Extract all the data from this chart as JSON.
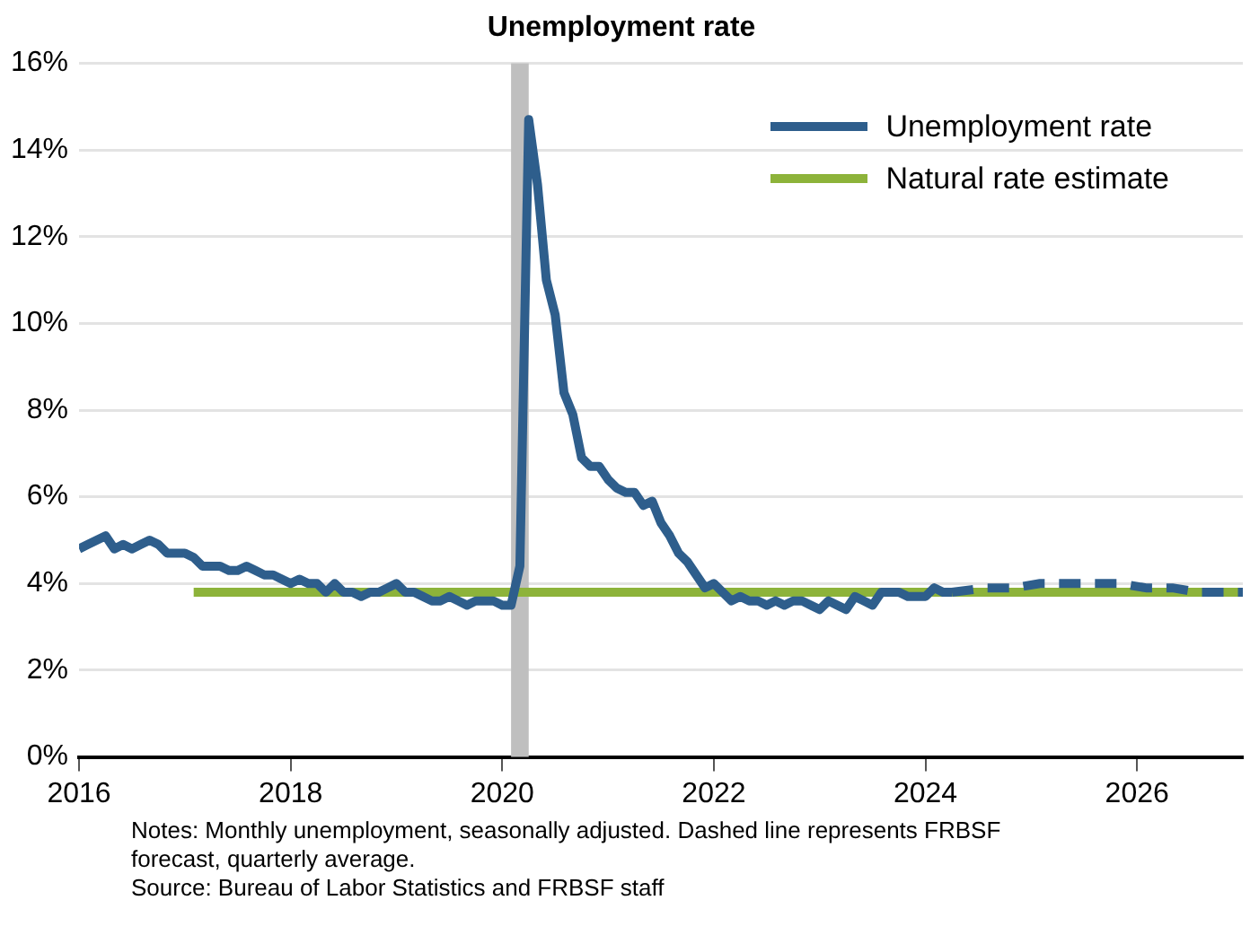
{
  "chart_data": {
    "type": "line",
    "title": "Unemployment rate",
    "xlim": [
      "2016",
      "2027"
    ],
    "xticks": [
      {
        "value": "2016",
        "label": "2016"
      },
      {
        "value": "2018",
        "label": "2018"
      },
      {
        "value": "2020",
        "label": "2020"
      },
      {
        "value": "2022",
        "label": "2022"
      },
      {
        "value": "2024",
        "label": "2024"
      },
      {
        "value": "2026",
        "label": "2026"
      }
    ],
    "ylim": [
      0,
      16
    ],
    "yticks": [
      {
        "value": 0,
        "label": "0%"
      },
      {
        "value": 2,
        "label": "2%"
      },
      {
        "value": 4,
        "label": "4%"
      },
      {
        "value": 6,
        "label": "6%"
      },
      {
        "value": 8,
        "label": "8%"
      },
      {
        "value": 10,
        "label": "10%"
      },
      {
        "value": 12,
        "label": "12%"
      },
      {
        "value": 14,
        "label": "14%"
      },
      {
        "value": 16,
        "label": "16%"
      }
    ],
    "grid": "y",
    "legend": "top right",
    "marker": "none",
    "bands": [
      {
        "axis": "x",
        "from": "2020-02",
        "to": "2020-04",
        "color": "#bfbfbf"
      }
    ],
    "series": [
      {
        "name": "Unemployment rate",
        "color": "#2e5e8c",
        "line_style": "solid",
        "x": [
          "2016-01",
          "2016-02",
          "2016-03",
          "2016-04",
          "2016-05",
          "2016-06",
          "2016-07",
          "2016-08",
          "2016-09",
          "2016-10",
          "2016-11",
          "2016-12",
          "2017-01",
          "2017-02",
          "2017-03",
          "2017-04",
          "2017-05",
          "2017-06",
          "2017-07",
          "2017-08",
          "2017-09",
          "2017-10",
          "2017-11",
          "2017-12",
          "2018-01",
          "2018-02",
          "2018-03",
          "2018-04",
          "2018-05",
          "2018-06",
          "2018-07",
          "2018-08",
          "2018-09",
          "2018-10",
          "2018-11",
          "2018-12",
          "2019-01",
          "2019-02",
          "2019-03",
          "2019-04",
          "2019-05",
          "2019-06",
          "2019-07",
          "2019-08",
          "2019-09",
          "2019-10",
          "2019-11",
          "2019-12",
          "2020-01",
          "2020-02",
          "2020-03",
          "2020-04",
          "2020-05",
          "2020-06",
          "2020-07",
          "2020-08",
          "2020-09",
          "2020-10",
          "2020-11",
          "2020-12",
          "2021-01",
          "2021-02",
          "2021-03",
          "2021-04",
          "2021-05",
          "2021-06",
          "2021-07",
          "2021-08",
          "2021-09",
          "2021-10",
          "2021-11",
          "2021-12",
          "2022-01",
          "2022-02",
          "2022-03",
          "2022-04",
          "2022-05",
          "2022-06",
          "2022-07",
          "2022-08",
          "2022-09",
          "2022-10",
          "2022-11",
          "2022-12",
          "2023-01",
          "2023-02",
          "2023-03",
          "2023-04",
          "2023-05",
          "2023-06",
          "2023-07",
          "2023-08",
          "2023-09",
          "2023-10",
          "2023-11",
          "2023-12",
          "2024-01",
          "2024-02",
          "2024-03",
          "2024-04"
        ],
        "values": [
          4.8,
          4.9,
          5.0,
          5.1,
          4.8,
          4.9,
          4.8,
          4.9,
          5.0,
          4.9,
          4.7,
          4.7,
          4.7,
          4.6,
          4.4,
          4.4,
          4.4,
          4.3,
          4.3,
          4.4,
          4.3,
          4.2,
          4.2,
          4.1,
          4.0,
          4.1,
          4.0,
          4.0,
          3.8,
          4.0,
          3.8,
          3.8,
          3.7,
          3.8,
          3.8,
          3.9,
          4.0,
          3.8,
          3.8,
          3.7,
          3.6,
          3.6,
          3.7,
          3.6,
          3.5,
          3.6,
          3.6,
          3.6,
          3.5,
          3.5,
          4.4,
          14.7,
          13.2,
          11.0,
          10.2,
          8.4,
          7.9,
          6.9,
          6.7,
          6.7,
          6.4,
          6.2,
          6.1,
          6.1,
          5.8,
          5.9,
          5.4,
          5.1,
          4.7,
          4.5,
          4.2,
          3.9,
          4.0,
          3.8,
          3.6,
          3.7,
          3.6,
          3.6,
          3.5,
          3.6,
          3.5,
          3.6,
          3.6,
          3.5,
          3.4,
          3.6,
          3.5,
          3.4,
          3.7,
          3.6,
          3.5,
          3.8,
          3.8,
          3.8,
          3.7,
          3.7,
          3.7,
          3.9,
          3.8,
          3.8
        ]
      },
      {
        "color": "#2e5e8c",
        "line_style": "dashed",
        "x": [
          "2024-04",
          "2024-08",
          "2024-11",
          "2025-02",
          "2025-05",
          "2025-08",
          "2025-11",
          "2026-02",
          "2026-05",
          "2026-08",
          "2026-11",
          "2027-01"
        ],
        "values": [
          3.8,
          3.9,
          3.9,
          4.0,
          4.0,
          4.0,
          4.0,
          3.9,
          3.9,
          3.8,
          3.8,
          3.8
        ]
      },
      {
        "name": "Natural rate estimate",
        "color": "#8db33a",
        "line_style": "solid",
        "x": [
          "2017-02",
          "2027-01"
        ],
        "values": [
          3.8,
          3.8
        ]
      }
    ],
    "annotations": [
      "Notes: Monthly unemployment, seasonally adjusted. Dashed line represents FRBSF forecast, quarterly average.",
      "Source: Bureau of Labor Statistics and FRBSF staff"
    ]
  }
}
